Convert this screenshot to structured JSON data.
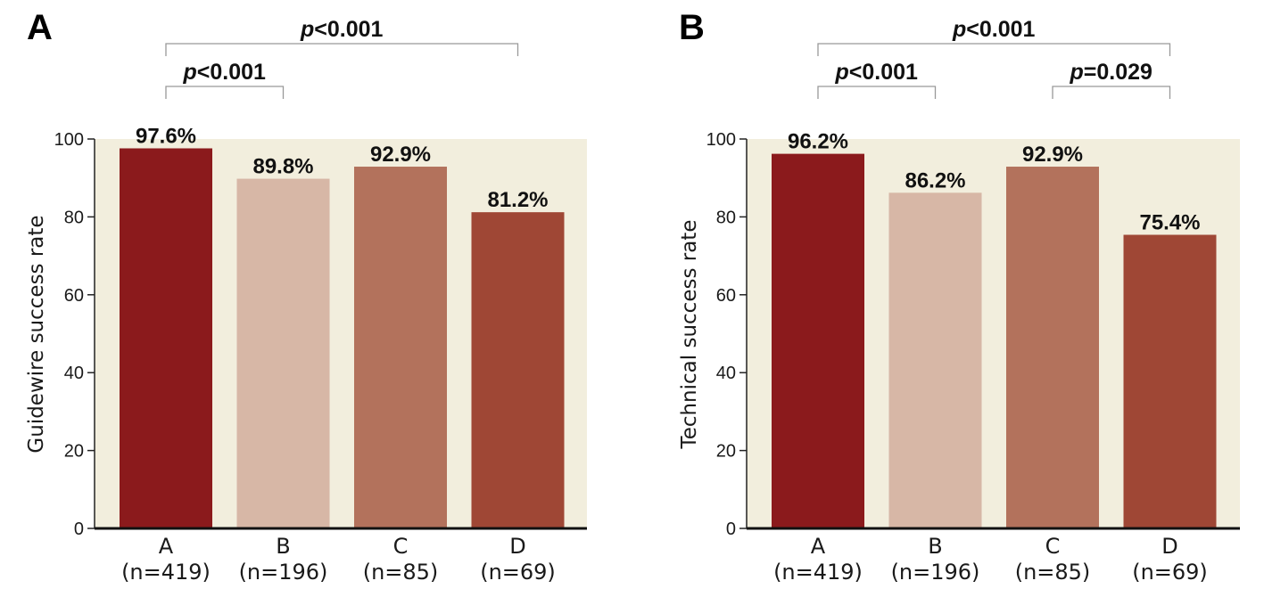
{
  "chart_data": [
    {
      "type": "bar",
      "panel": "A",
      "title": "",
      "xlabel": "",
      "ylabel": "Guidewire success rate",
      "ylim": [
        0,
        100
      ],
      "yticks": [
        0,
        20,
        40,
        60,
        80,
        100
      ],
      "categories": [
        "A",
        "B",
        "C",
        "D"
      ],
      "category_n": [
        "(n=419)",
        "(n=196)",
        "(n=85)",
        "(n=69)"
      ],
      "values": [
        97.6,
        89.8,
        92.9,
        81.2
      ],
      "value_labels": [
        "97.6%",
        "89.8%",
        "92.9%",
        "81.2%"
      ],
      "colors": [
        "#8b1a1c",
        "#d7b7a6",
        "#b3725c",
        "#9f4735"
      ],
      "background": "#f2eedd",
      "grid": false,
      "legend": "none",
      "significance": [
        {
          "from": 0,
          "to": 3,
          "p": "p",
          "text": "<0.001",
          "level": 2
        },
        {
          "from": 0,
          "to": 1,
          "p": "p",
          "text": "<0.001",
          "level": 1
        }
      ]
    },
    {
      "type": "bar",
      "panel": "B",
      "title": "",
      "xlabel": "",
      "ylabel": "Technical success rate",
      "ylim": [
        0,
        100
      ],
      "yticks": [
        0,
        20,
        40,
        60,
        80,
        100
      ],
      "categories": [
        "A",
        "B",
        "C",
        "D"
      ],
      "category_n": [
        "(n=419)",
        "(n=196)",
        "(n=85)",
        "(n=69)"
      ],
      "values": [
        96.2,
        86.2,
        92.9,
        75.4
      ],
      "value_labels": [
        "96.2%",
        "86.2%",
        "92.9%",
        "75.4%"
      ],
      "colors": [
        "#8b1a1c",
        "#d7b7a6",
        "#b3725c",
        "#9f4735"
      ],
      "background": "#f2eedd",
      "grid": false,
      "legend": "none",
      "significance": [
        {
          "from": 0,
          "to": 3,
          "p": "p",
          "text": "<0.001",
          "level": 2
        },
        {
          "from": 0,
          "to": 1,
          "p": "p",
          "text": "<0.001",
          "level": 1
        },
        {
          "from": 2,
          "to": 3,
          "p": "p",
          "text": "=0.029",
          "level": 1
        }
      ]
    }
  ]
}
